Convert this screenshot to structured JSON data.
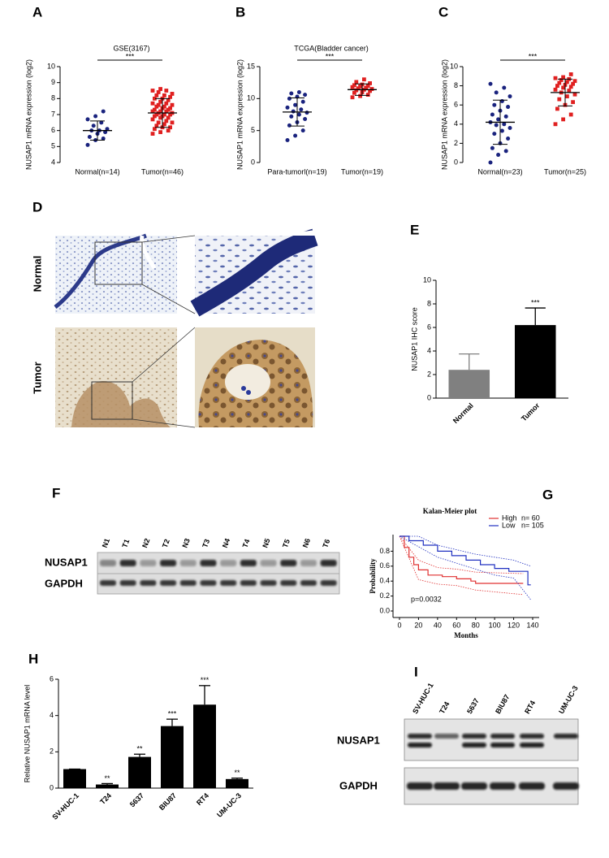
{
  "chart_data": [
    {
      "type": "strip",
      "label": "A",
      "title": "GSE(3167)",
      "y_label": "NUSAP1 mRNA expression (log2)",
      "significance": "***",
      "ylim": [
        4,
        10
      ],
      "yticks": [
        4,
        5,
        6,
        7,
        8,
        9,
        10
      ],
      "series": [
        {
          "name": "Normal(n=14)",
          "color": "#1a237e",
          "marker": "circle",
          "mean": 6.0,
          "sd": 0.6,
          "values": [
            5.1,
            5.4,
            5.5,
            5.6,
            5.8,
            5.9,
            6.0,
            6.0,
            6.1,
            6.3,
            6.5,
            6.7,
            6.9,
            7.2
          ]
        },
        {
          "name": "Tumor(n=46)",
          "color": "#e02020",
          "marker": "square",
          "mean": 7.1,
          "sd": 0.9,
          "values": [
            5.8,
            5.9,
            6.0,
            6.1,
            6.2,
            6.2,
            6.3,
            6.4,
            6.5,
            6.5,
            6.6,
            6.7,
            6.8,
            6.8,
            6.9,
            6.9,
            7.0,
            7.0,
            7.0,
            7.1,
            7.1,
            7.2,
            7.2,
            7.2,
            7.3,
            7.3,
            7.4,
            7.4,
            7.5,
            7.5,
            7.6,
            7.6,
            7.7,
            7.7,
            7.8,
            7.9,
            8.0,
            8.0,
            8.1,
            8.2,
            8.2,
            8.3,
            8.4,
            8.5,
            8.5,
            8.6
          ]
        }
      ]
    },
    {
      "type": "strip",
      "label": "B",
      "title": "TCGA(Bladder cancer)",
      "y_label": "NUSAP1 mRNA expression (log2)",
      "significance": "***",
      "ylim": [
        0,
        15
      ],
      "yticks": [
        0,
        5,
        10,
        15
      ],
      "series": [
        {
          "name": "Para-tumorl(n=19)",
          "color": "#1a237e",
          "marker": "circle",
          "mean": 7.9,
          "sd": 2.2,
          "values": [
            3.5,
            4.2,
            5.0,
            5.8,
            6.3,
            6.8,
            7.2,
            7.5,
            7.8,
            8.0,
            8.3,
            8.6,
            9.0,
            9.5,
            10.0,
            10.3,
            10.6,
            10.8,
            11.0
          ]
        },
        {
          "name": "Tumor(n=19)",
          "color": "#e02020",
          "marker": "square",
          "mean": 11.4,
          "sd": 0.9,
          "values": [
            10.2,
            10.4,
            10.6,
            10.9,
            11.0,
            11.2,
            11.3,
            11.4,
            11.5,
            11.6,
            11.7,
            11.8,
            11.9,
            12.0,
            12.1,
            12.2,
            12.4,
            12.6,
            13.0
          ]
        }
      ]
    },
    {
      "type": "strip",
      "label": "C",
      "y_label": "NUSAP1 mRNA expression (log2)",
      "significance": "***",
      "ylim": [
        0,
        10
      ],
      "yticks": [
        0,
        2,
        4,
        6,
        8,
        10
      ],
      "series": [
        {
          "name": "Normal(n=23)",
          "color": "#1a237e",
          "marker": "circle",
          "mean": 4.2,
          "sd": 2.3,
          "values": [
            0.0,
            0.8,
            1.2,
            1.5,
            2.0,
            2.5,
            3.0,
            3.3,
            3.6,
            3.9,
            4.0,
            4.2,
            4.5,
            4.8,
            5.0,
            5.4,
            5.8,
            6.0,
            6.4,
            6.9,
            7.3,
            7.8,
            8.2
          ]
        },
        {
          "name": "Tumor(n=25)",
          "color": "#e02020",
          "marker": "square",
          "mean": 7.3,
          "sd": 1.4,
          "values": [
            4.0,
            4.5,
            5.0,
            5.6,
            6.0,
            6.3,
            6.6,
            6.9,
            7.1,
            7.3,
            7.5,
            7.6,
            7.8,
            7.9,
            8.0,
            8.1,
            8.2,
            8.3,
            8.4,
            8.5,
            8.6,
            8.7,
            8.8,
            8.9,
            9.2
          ]
        }
      ]
    },
    {
      "type": "bar",
      "label": "E",
      "y_label": "NUSAP1 IHC score",
      "categories": [
        "Normal",
        "Tumor"
      ],
      "values": [
        2.4,
        6.2
      ],
      "errors": [
        1.35,
        1.45
      ],
      "colors": [
        "#808080",
        "#000000"
      ],
      "significance": [
        null,
        "***"
      ],
      "ylim": [
        0,
        10
      ],
      "yticks": [
        0,
        2,
        4,
        6,
        8,
        10
      ]
    },
    {
      "type": "line",
      "label": "G",
      "title": "Kalan-Meier plot",
      "x_label": "Months",
      "y_label": "Probability",
      "annotation": "p=0.0032",
      "xlim": [
        0,
        140
      ],
      "ylim": [
        0,
        1
      ],
      "xticks": [
        0,
        20,
        40,
        60,
        80,
        100,
        120,
        140
      ],
      "yticks": [
        {
          "value": 0,
          "label": "0.0"
        },
        0.2,
        0.4,
        0.6,
        0.8
      ],
      "series": [
        {
          "name": "High",
          "n_label": "n= 60",
          "color": "#e03030",
          "x": [
            0,
            5,
            5,
            10,
            10,
            15,
            15,
            20,
            20,
            30,
            30,
            45,
            45,
            60,
            60,
            75,
            75,
            80,
            80,
            130
          ],
          "values": [
            1,
            1,
            0.85,
            0.85,
            0.72,
            0.72,
            0.62,
            0.62,
            0.55,
            0.55,
            0.48,
            0.48,
            0.46,
            0.46,
            0.43,
            0.43,
            0.4,
            0.4,
            0.37,
            0.37
          ],
          "ci_x": [
            0,
            20,
            40,
            60,
            80,
            130
          ],
          "ci_lower": [
            1,
            0.42,
            0.36,
            0.34,
            0.28,
            0.22
          ],
          "ci_upper": [
            1,
            0.68,
            0.58,
            0.56,
            0.52,
            0.5
          ]
        },
        {
          "name": "Low",
          "n_label": "n= 105",
          "color": "#2030c0",
          "x": [
            0,
            10,
            10,
            25,
            25,
            40,
            40,
            55,
            55,
            70,
            70,
            85,
            85,
            100,
            100,
            115,
            115,
            135,
            135,
            138
          ],
          "values": [
            1,
            1,
            0.94,
            0.94,
            0.88,
            0.88,
            0.8,
            0.8,
            0.74,
            0.74,
            0.68,
            0.68,
            0.62,
            0.62,
            0.57,
            0.57,
            0.53,
            0.53,
            0.35,
            0.35
          ],
          "ci_x": [
            0,
            20,
            40,
            60,
            80,
            100,
            120,
            138
          ],
          "ci_lower": [
            1,
            0.86,
            0.72,
            0.64,
            0.56,
            0.48,
            0.44,
            0.15
          ],
          "ci_upper": [
            1,
            1,
            0.88,
            0.82,
            0.76,
            0.72,
            0.68,
            0.6
          ]
        }
      ]
    },
    {
      "type": "bar",
      "label": "H",
      "y_label": "Relative NUSAP1 mRNA level",
      "categories": [
        "SV-HUC-1",
        "T24",
        "5637",
        "BIU87",
        "RT4",
        "UM-UC-3"
      ],
      "values": [
        1.05,
        0.2,
        1.72,
        3.42,
        4.6,
        0.5
      ],
      "errors": [
        0,
        0.05,
        0.15,
        0.38,
        1.05,
        0.05
      ],
      "color": "#000000",
      "significance": [
        null,
        "**",
        "**",
        "***",
        "***",
        "**"
      ],
      "ylim": [
        0,
        6
      ],
      "yticks": [
        0,
        2,
        4,
        6
      ]
    }
  ],
  "tissue_d": {
    "label": "D",
    "rows": [
      "Normal",
      "Tumor"
    ]
  },
  "blot_f": {
    "label": "F",
    "lanes": [
      "N1",
      "T1",
      "N2",
      "T2",
      "N3",
      "T3",
      "N4",
      "T4",
      "N5",
      "T5",
      "N6",
      "T6"
    ],
    "rows": [
      "NUSAP1",
      "GAPDH"
    ]
  },
  "blot_i": {
    "label": "I",
    "lanes": [
      "SV-HUC-1",
      "T24",
      "5637",
      "BIU87",
      "RT4",
      "UM-UC-3"
    ],
    "rows": [
      "NUSAP1",
      "GAPDH"
    ]
  }
}
